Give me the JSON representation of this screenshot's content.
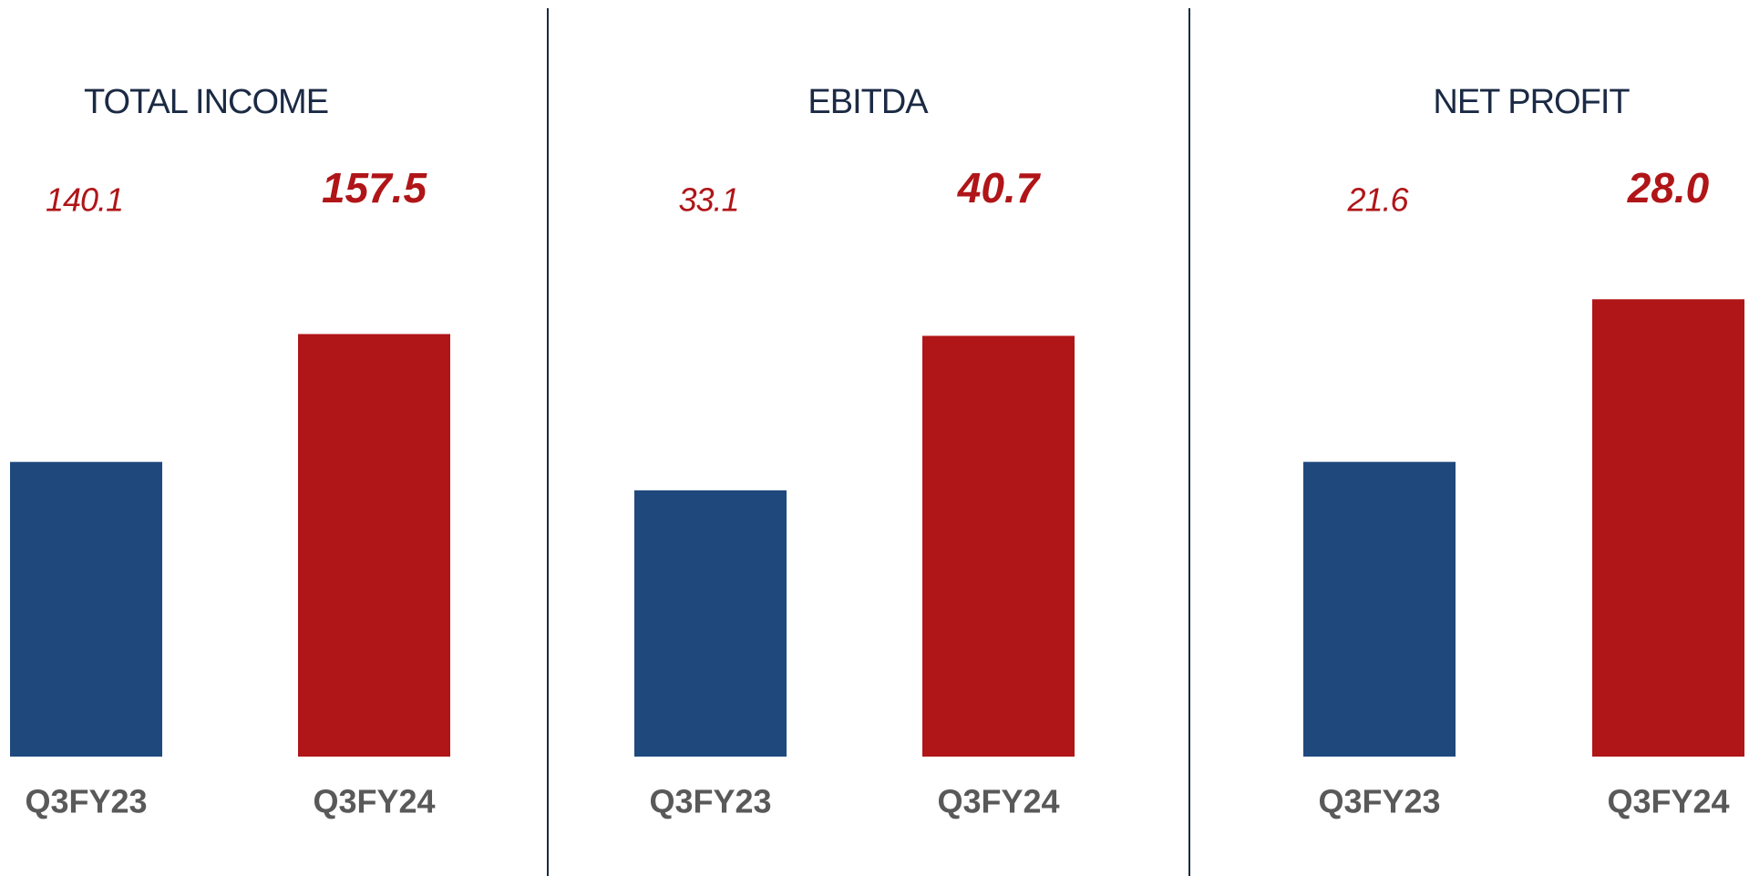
{
  "chart_data": [
    {
      "type": "bar",
      "title": "TOTAL INCOME",
      "categories": [
        "Q3FY23",
        "Q3FY24"
      ],
      "values": [
        140.1,
        157.5
      ],
      "value_labels": [
        "140.1",
        "157.5"
      ],
      "colors": [
        "#1f497d",
        "#b01518"
      ],
      "ylim": [
        100,
        165
      ]
    },
    {
      "type": "bar",
      "title": "EBITDA",
      "categories": [
        "Q3FY23",
        "Q3FY24"
      ],
      "values": [
        33.1,
        40.7
      ],
      "value_labels": [
        "33.1",
        "40.7"
      ],
      "colors": [
        "#1f497d",
        "#b01518"
      ],
      "ylim": [
        20,
        43.5
      ]
    },
    {
      "type": "bar",
      "title": "NET PROFIT",
      "categories": [
        "Q3FY23",
        "Q3FY24"
      ],
      "values": [
        21.6,
        28
      ],
      "value_labels": [
        "21.6",
        "28.0"
      ],
      "colors": [
        "#1f497d",
        "#b01518"
      ],
      "ylim": [
        10,
        28.8
      ]
    }
  ]
}
